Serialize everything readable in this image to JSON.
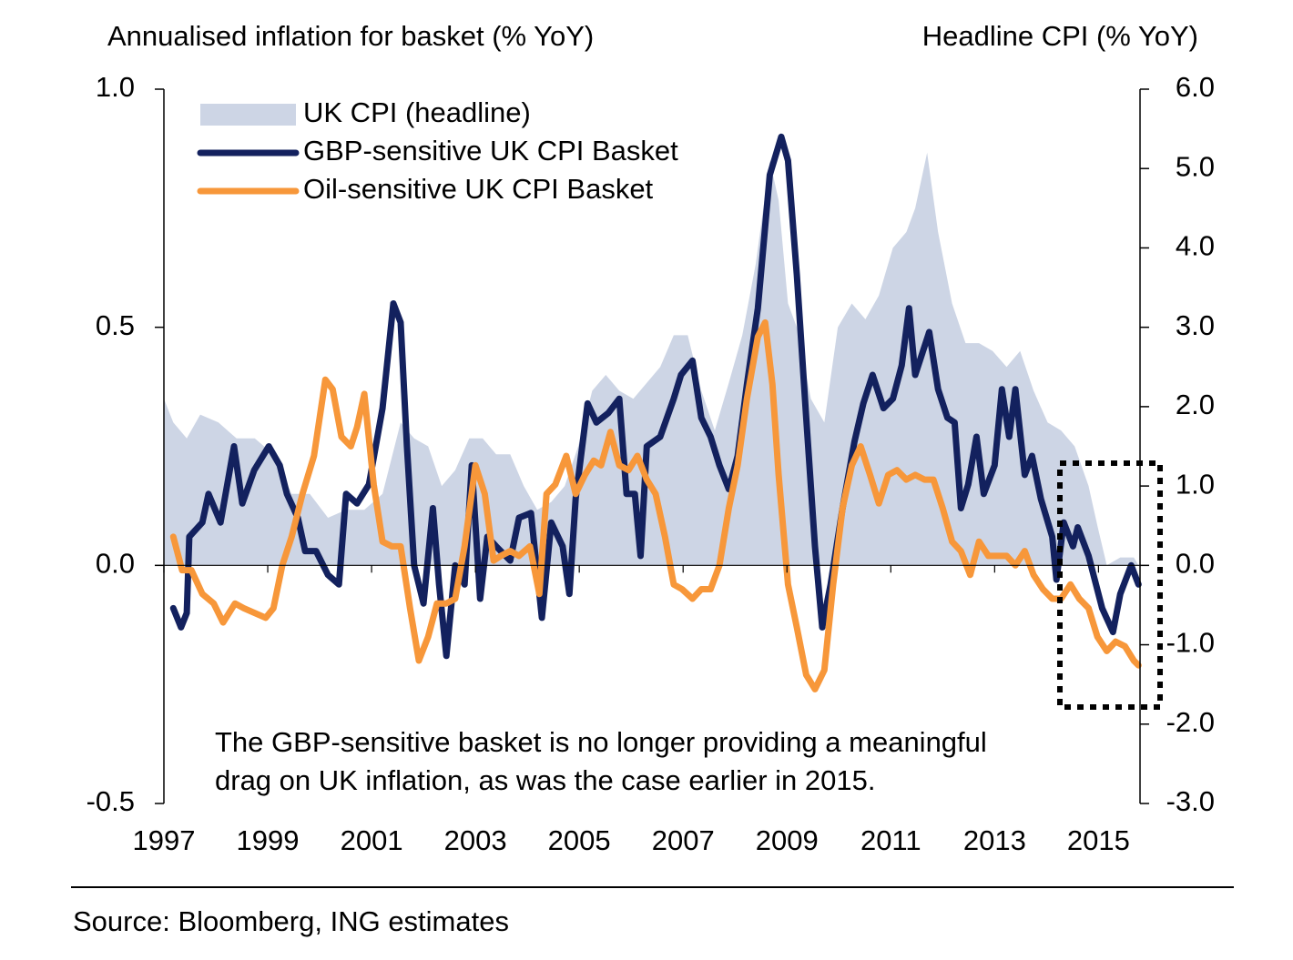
{
  "chart_data": {
    "type": "line",
    "ylabel": "Annualised inflation for basket (% YoY)",
    "y2label": "Headline CPI (% YoY)",
    "xlim": [
      1997,
      2015.8
    ],
    "xticks": [
      1997,
      1999,
      2001,
      2003,
      2005,
      2007,
      2009,
      2011,
      2013,
      2015
    ],
    "ylim": [
      -0.5,
      1.0
    ],
    "yticks": [
      {
        "value": -0.5,
        "label": "-0.5"
      },
      {
        "value": 0,
        "label": "0.0"
      },
      {
        "value": 0.5,
        "label": "0.5"
      },
      {
        "value": 1.0,
        "label": "1.0"
      }
    ],
    "y2lim": [
      -3.0,
      6.0
    ],
    "y2ticks": [
      {
        "value": -3,
        "label": "-3.0"
      },
      {
        "value": -2,
        "label": "-2.0"
      },
      {
        "value": -1,
        "label": "-1.0"
      },
      {
        "value": 0,
        "label": "0.0"
      },
      {
        "value": 1,
        "label": "1.0"
      },
      {
        "value": 2,
        "label": "2.0"
      },
      {
        "value": 3,
        "label": "3.0"
      },
      {
        "value": 4,
        "label": "4.0"
      },
      {
        "value": 5,
        "label": "5.0"
      },
      {
        "value": 6,
        "label": "6.0"
      }
    ],
    "legend": "upper left",
    "series": [
      {
        "name": "UK CPI (headline)",
        "type": "area",
        "axis": "y2",
        "color": "#cdd5e5",
        "x": [
          1997.0,
          1997.18,
          1997.44,
          1997.7,
          1998.05,
          1998.4,
          1998.75,
          1999.11,
          1999.46,
          1999.81,
          2000.16,
          2000.51,
          2000.86,
          2001.21,
          2001.56,
          2001.82,
          2002.09,
          2002.35,
          2002.61,
          2002.88,
          2003.14,
          2003.4,
          2003.67,
          2003.93,
          2004.19,
          2004.46,
          2004.72,
          2004.98,
          2005.25,
          2005.51,
          2005.77,
          2006.04,
          2006.3,
          2006.56,
          2006.82,
          2007.09,
          2007.35,
          2007.61,
          2007.88,
          2008.14,
          2008.4,
          2008.67,
          2008.84,
          2009.02,
          2009.19,
          2009.46,
          2009.72,
          2009.98,
          2010.25,
          2010.51,
          2010.77,
          2011.04,
          2011.3,
          2011.47,
          2011.7,
          2011.91,
          2012.18,
          2012.44,
          2012.7,
          2012.96,
          2013.23,
          2013.49,
          2013.75,
          2014.02,
          2014.28,
          2014.54,
          2014.81,
          2014.98,
          2015.16,
          2015.42,
          2015.68,
          2015.77
        ],
        "values": [
          2.1,
          1.8,
          1.6,
          1.9,
          1.8,
          1.6,
          1.6,
          1.4,
          0.9,
          0.9,
          0.6,
          0.7,
          0.7,
          0.9,
          1.8,
          1.6,
          1.5,
          1.0,
          1.2,
          1.6,
          1.6,
          1.4,
          1.4,
          1.0,
          0.7,
          0.8,
          1.0,
          1.5,
          2.2,
          2.4,
          2.2,
          2.1,
          2.3,
          2.5,
          2.9,
          2.9,
          2.2,
          1.7,
          2.3,
          2.9,
          3.8,
          5.1,
          4.6,
          3.3,
          3.0,
          2.1,
          1.8,
          3.0,
          3.3,
          3.1,
          3.4,
          4.0,
          4.2,
          4.5,
          5.2,
          4.2,
          3.3,
          2.8,
          2.8,
          2.7,
          2.5,
          2.7,
          2.2,
          1.8,
          1.7,
          1.5,
          1.0,
          0.5,
          0.0,
          0.1,
          0.1,
          0.0
        ]
      },
      {
        "name": "GBP-sensitive UK CPI Basket",
        "type": "line",
        "color": "#13215e",
        "x": [
          1997.18,
          1997.33,
          1997.44,
          1997.49,
          1997.74,
          1997.86,
          1998.09,
          1998.35,
          1998.51,
          1998.74,
          1999.02,
          1999.23,
          1999.37,
          1999.58,
          1999.72,
          1999.93,
          2000.16,
          2000.37,
          2000.51,
          2000.72,
          2000.95,
          2001.21,
          2001.42,
          2001.56,
          2001.68,
          2001.82,
          2002.0,
          2002.18,
          2002.3,
          2002.44,
          2002.61,
          2002.79,
          2002.93,
          2003.09,
          2003.23,
          2003.4,
          2003.67,
          2003.84,
          2004.07,
          2004.28,
          2004.46,
          2004.68,
          2004.81,
          2004.93,
          2005.16,
          2005.33,
          2005.56,
          2005.77,
          2005.91,
          2006.07,
          2006.18,
          2006.3,
          2006.56,
          2006.82,
          2006.96,
          2007.18,
          2007.35,
          2007.53,
          2007.7,
          2007.88,
          2008.05,
          2008.23,
          2008.44,
          2008.67,
          2008.89,
          2009.02,
          2009.19,
          2009.37,
          2009.54,
          2009.68,
          2009.84,
          2010.07,
          2010.3,
          2010.47,
          2010.65,
          2010.86,
          2011.04,
          2011.21,
          2011.35,
          2011.47,
          2011.74,
          2011.91,
          2012.09,
          2012.23,
          2012.35,
          2012.49,
          2012.65,
          2012.79,
          2013.0,
          2013.14,
          2013.28,
          2013.4,
          2013.58,
          2013.72,
          2013.89,
          2014.11,
          2014.19,
          2014.33,
          2014.51,
          2014.6,
          2014.81,
          2015.07,
          2015.28,
          2015.42,
          2015.63,
          2015.77
        ],
        "values": [
          -0.09,
          -0.13,
          -0.1,
          0.06,
          0.09,
          0.15,
          0.09,
          0.25,
          0.13,
          0.2,
          0.25,
          0.21,
          0.15,
          0.1,
          0.03,
          0.03,
          -0.02,
          -0.04,
          0.15,
          0.13,
          0.17,
          0.33,
          0.55,
          0.51,
          0.25,
          0.0,
          -0.08,
          0.12,
          -0.04,
          -0.19,
          0.0,
          -0.04,
          0.21,
          -0.07,
          0.06,
          0.04,
          0.01,
          0.1,
          0.11,
          -0.11,
          0.09,
          0.04,
          -0.06,
          0.14,
          0.34,
          0.3,
          0.32,
          0.35,
          0.15,
          0.15,
          0.02,
          0.25,
          0.27,
          0.35,
          0.4,
          0.43,
          0.31,
          0.27,
          0.21,
          0.16,
          0.23,
          0.38,
          0.54,
          0.82,
          0.9,
          0.85,
          0.61,
          0.31,
          0.04,
          -0.13,
          -0.04,
          0.12,
          0.26,
          0.34,
          0.4,
          0.33,
          0.35,
          0.42,
          0.54,
          0.4,
          0.49,
          0.37,
          0.31,
          0.3,
          0.12,
          0.17,
          0.27,
          0.15,
          0.21,
          0.37,
          0.27,
          0.37,
          0.19,
          0.23,
          0.14,
          0.06,
          -0.03,
          0.09,
          0.04,
          0.08,
          0.02,
          -0.09,
          -0.14,
          -0.06,
          0.0,
          -0.04
        ]
      },
      {
        "name": "Oil-sensitive UK CPI Basket",
        "type": "line",
        "color": "#f7973a",
        "x": [
          1997.18,
          1997.35,
          1997.53,
          1997.74,
          1997.96,
          1998.14,
          1998.37,
          1998.54,
          1998.75,
          1998.96,
          1999.11,
          1999.28,
          1999.46,
          1999.67,
          1999.89,
          2000.11,
          2000.25,
          2000.42,
          2000.6,
          2000.72,
          2000.86,
          2001.04,
          2001.21,
          2001.39,
          2001.56,
          2001.74,
          2001.91,
          2002.09,
          2002.26,
          2002.44,
          2002.61,
          2002.79,
          2003.0,
          2003.18,
          2003.35,
          2003.49,
          2003.67,
          2003.84,
          2004.05,
          2004.23,
          2004.37,
          2004.54,
          2004.75,
          2004.93,
          2005.11,
          2005.28,
          2005.42,
          2005.6,
          2005.77,
          2005.95,
          2006.12,
          2006.3,
          2006.47,
          2006.65,
          2006.82,
          2006.98,
          2007.18,
          2007.35,
          2007.53,
          2007.7,
          2007.88,
          2008.05,
          2008.23,
          2008.44,
          2008.58,
          2008.72,
          2008.84,
          2009.02,
          2009.19,
          2009.37,
          2009.54,
          2009.72,
          2009.89,
          2010.07,
          2010.25,
          2010.42,
          2010.6,
          2010.77,
          2010.95,
          2011.12,
          2011.3,
          2011.47,
          2011.65,
          2011.82,
          2012.0,
          2012.18,
          2012.35,
          2012.53,
          2012.7,
          2012.88,
          2013.05,
          2013.23,
          2013.4,
          2013.58,
          2013.75,
          2013.93,
          2014.11,
          2014.28,
          2014.46,
          2014.63,
          2014.81,
          2014.98,
          2015.16,
          2015.33,
          2015.51,
          2015.68,
          2015.77
        ],
        "values": [
          0.06,
          -0.01,
          -0.01,
          -0.06,
          -0.08,
          -0.12,
          -0.08,
          -0.09,
          -0.1,
          -0.11,
          -0.09,
          0.0,
          0.06,
          0.15,
          0.23,
          0.39,
          0.37,
          0.27,
          0.25,
          0.29,
          0.36,
          0.17,
          0.05,
          0.04,
          0.04,
          -0.09,
          -0.2,
          -0.15,
          -0.08,
          -0.08,
          -0.07,
          0.04,
          0.21,
          0.15,
          0.01,
          0.02,
          0.03,
          0.02,
          0.04,
          -0.06,
          0.15,
          0.17,
          0.23,
          0.15,
          0.19,
          0.22,
          0.21,
          0.28,
          0.21,
          0.2,
          0.23,
          0.18,
          0.15,
          0.06,
          -0.04,
          -0.05,
          -0.07,
          -0.05,
          -0.05,
          0.0,
          0.12,
          0.21,
          0.35,
          0.48,
          0.51,
          0.38,
          0.19,
          -0.04,
          -0.13,
          -0.23,
          -0.26,
          -0.22,
          -0.04,
          0.12,
          0.21,
          0.25,
          0.19,
          0.13,
          0.19,
          0.2,
          0.18,
          0.19,
          0.18,
          0.18,
          0.12,
          0.05,
          0.03,
          -0.02,
          0.05,
          0.02,
          0.02,
          0.02,
          0.0,
          0.03,
          -0.02,
          -0.05,
          -0.07,
          -0.07,
          -0.04,
          -0.07,
          -0.09,
          -0.15,
          -0.18,
          -0.16,
          -0.17,
          -0.2,
          -0.21
        ]
      }
    ],
    "annotation": [
      "The GBP-sensitive basket is no longer providing a meaningful",
      "drag on UK inflation, as was the case earlier in 2015."
    ],
    "source": "Source: Bloomberg, ING estimates"
  }
}
